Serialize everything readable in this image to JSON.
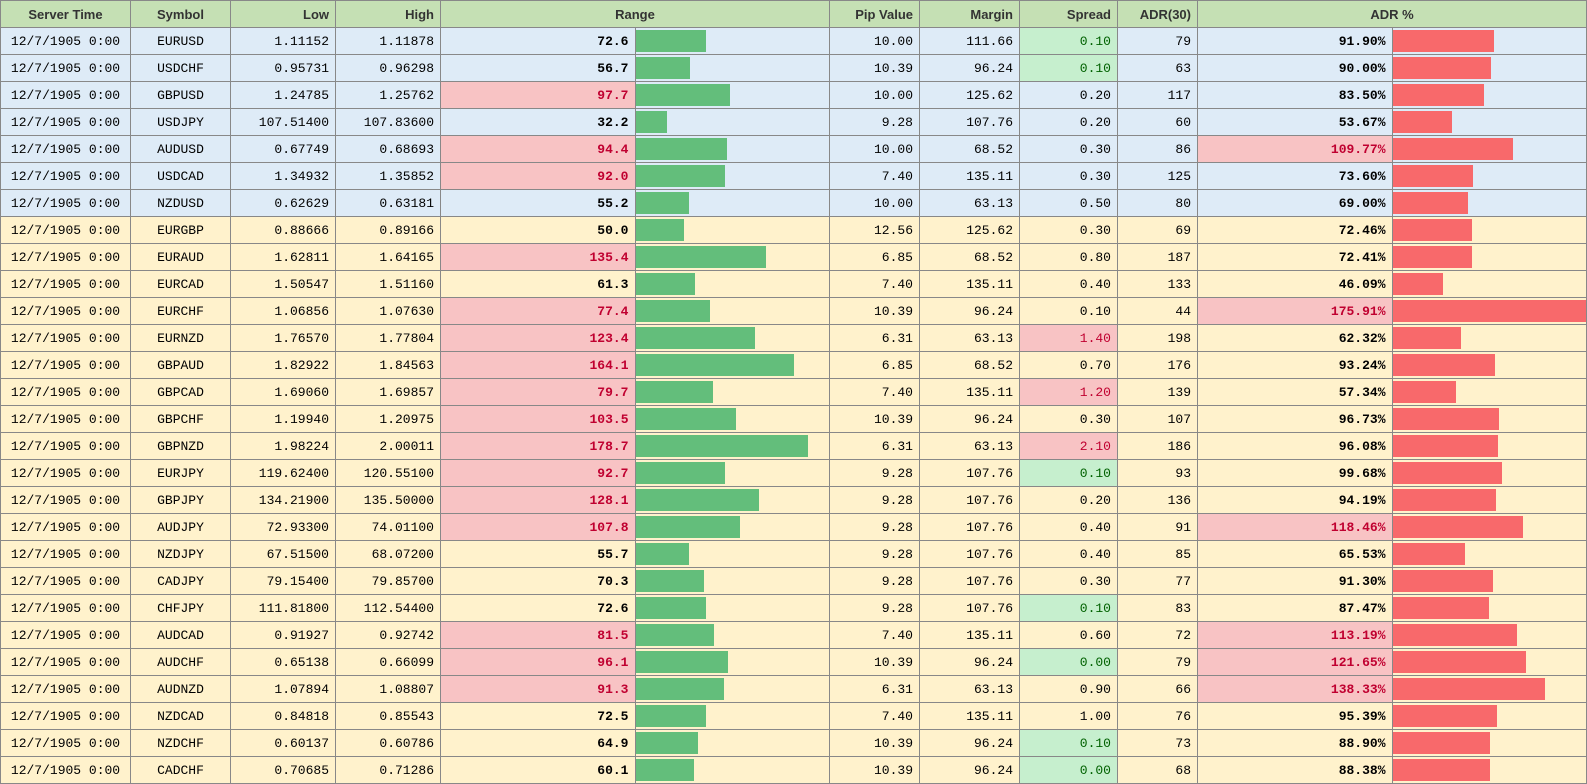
{
  "columns": {
    "time": "Server Time",
    "symbol": "Symbol",
    "low": "Low",
    "high": "High",
    "range": "Range",
    "pip": "Pip Value",
    "margin": "Margin",
    "spread": "Spread",
    "adr": "ADR(30)",
    "adrpct": "ADR %"
  },
  "range_bar_max": 200,
  "adr_bar_max": 176,
  "colors": {
    "bar_green": "#63be7b",
    "bar_red": "#f8696b",
    "row_blue": "#deebf7",
    "row_yellow": "#fff2cc",
    "header_bg": "#c5e0b4",
    "hl_pink_bg": "#f8c3c4",
    "hl_pink_fg": "#c00030",
    "hl_green_bg": "#c6efce",
    "hl_green_fg": "#006100"
  },
  "rows": [
    {
      "group": "blue",
      "time": "12/7/1905 0:00",
      "symbol": "EURUSD",
      "low": "1.11152",
      "high": "1.11878",
      "range": "72.6",
      "range_hl": "",
      "pip": "10.00",
      "margin": "111.66",
      "spread": "0.10",
      "spread_hl": "green",
      "adr": "79",
      "adrpct": "91.90%",
      "adrpct_hl": "",
      "adrpct_n": 91.9
    },
    {
      "group": "blue",
      "time": "12/7/1905 0:00",
      "symbol": "USDCHF",
      "low": "0.95731",
      "high": "0.96298",
      "range": "56.7",
      "range_hl": "",
      "pip": "10.39",
      "margin": "96.24",
      "spread": "0.10",
      "spread_hl": "green",
      "adr": "63",
      "adrpct": "90.00%",
      "adrpct_hl": "",
      "adrpct_n": 90.0
    },
    {
      "group": "blue",
      "time": "12/7/1905 0:00",
      "symbol": "GBPUSD",
      "low": "1.24785",
      "high": "1.25762",
      "range": "97.7",
      "range_hl": "pink",
      "pip": "10.00",
      "margin": "125.62",
      "spread": "0.20",
      "spread_hl": "",
      "adr": "117",
      "adrpct": "83.50%",
      "adrpct_hl": "",
      "adrpct_n": 83.5
    },
    {
      "group": "blue",
      "time": "12/7/1905 0:00",
      "symbol": "USDJPY",
      "low": "107.51400",
      "high": "107.83600",
      "range": "32.2",
      "range_hl": "",
      "pip": "9.28",
      "margin": "107.76",
      "spread": "0.20",
      "spread_hl": "",
      "adr": "60",
      "adrpct": "53.67%",
      "adrpct_hl": "",
      "adrpct_n": 53.67
    },
    {
      "group": "blue",
      "time": "12/7/1905 0:00",
      "symbol": "AUDUSD",
      "low": "0.67749",
      "high": "0.68693",
      "range": "94.4",
      "range_hl": "pink",
      "pip": "10.00",
      "margin": "68.52",
      "spread": "0.30",
      "spread_hl": "",
      "adr": "86",
      "adrpct": "109.77%",
      "adrpct_hl": "pink",
      "adrpct_n": 109.77
    },
    {
      "group": "blue",
      "time": "12/7/1905 0:00",
      "symbol": "USDCAD",
      "low": "1.34932",
      "high": "1.35852",
      "range": "92.0",
      "range_hl": "pink",
      "pip": "7.40",
      "margin": "135.11",
      "spread": "0.30",
      "spread_hl": "",
      "adr": "125",
      "adrpct": "73.60%",
      "adrpct_hl": "",
      "adrpct_n": 73.6
    },
    {
      "group": "blue",
      "time": "12/7/1905 0:00",
      "symbol": "NZDUSD",
      "low": "0.62629",
      "high": "0.63181",
      "range": "55.2",
      "range_hl": "",
      "pip": "10.00",
      "margin": "63.13",
      "spread": "0.50",
      "spread_hl": "",
      "adr": "80",
      "adrpct": "69.00%",
      "adrpct_hl": "",
      "adrpct_n": 69.0
    },
    {
      "group": "yellow",
      "time": "12/7/1905 0:00",
      "symbol": "EURGBP",
      "low": "0.88666",
      "high": "0.89166",
      "range": "50.0",
      "range_hl": "",
      "pip": "12.56",
      "margin": "125.62",
      "spread": "0.30",
      "spread_hl": "",
      "adr": "69",
      "adrpct": "72.46%",
      "adrpct_hl": "",
      "adrpct_n": 72.46
    },
    {
      "group": "yellow",
      "time": "12/7/1905 0:00",
      "symbol": "EURAUD",
      "low": "1.62811",
      "high": "1.64165",
      "range": "135.4",
      "range_hl": "pink",
      "pip": "6.85",
      "margin": "68.52",
      "spread": "0.80",
      "spread_hl": "",
      "adr": "187",
      "adrpct": "72.41%",
      "adrpct_hl": "",
      "adrpct_n": 72.41
    },
    {
      "group": "yellow",
      "time": "12/7/1905 0:00",
      "symbol": "EURCAD",
      "low": "1.50547",
      "high": "1.51160",
      "range": "61.3",
      "range_hl": "",
      "pip": "7.40",
      "margin": "135.11",
      "spread": "0.40",
      "spread_hl": "",
      "adr": "133",
      "adrpct": "46.09%",
      "adrpct_hl": "",
      "adrpct_n": 46.09
    },
    {
      "group": "yellow",
      "time": "12/7/1905 0:00",
      "symbol": "EURCHF",
      "low": "1.06856",
      "high": "1.07630",
      "range": "77.4",
      "range_hl": "pink",
      "pip": "10.39",
      "margin": "96.24",
      "spread": "0.10",
      "spread_hl": "",
      "adr": "44",
      "adrpct": "175.91%",
      "adrpct_hl": "pink",
      "adrpct_n": 175.91
    },
    {
      "group": "yellow",
      "time": "12/7/1905 0:00",
      "symbol": "EURNZD",
      "low": "1.76570",
      "high": "1.77804",
      "range": "123.4",
      "range_hl": "pink",
      "pip": "6.31",
      "margin": "63.13",
      "spread": "1.40",
      "spread_hl": "pink",
      "adr": "198",
      "adrpct": "62.32%",
      "adrpct_hl": "",
      "adrpct_n": 62.32
    },
    {
      "group": "yellow",
      "time": "12/7/1905 0:00",
      "symbol": "GBPAUD",
      "low": "1.82922",
      "high": "1.84563",
      "range": "164.1",
      "range_hl": "pink",
      "pip": "6.85",
      "margin": "68.52",
      "spread": "0.70",
      "spread_hl": "",
      "adr": "176",
      "adrpct": "93.24%",
      "adrpct_hl": "",
      "adrpct_n": 93.24
    },
    {
      "group": "yellow",
      "time": "12/7/1905 0:00",
      "symbol": "GBPCAD",
      "low": "1.69060",
      "high": "1.69857",
      "range": "79.7",
      "range_hl": "pink",
      "pip": "7.40",
      "margin": "135.11",
      "spread": "1.20",
      "spread_hl": "pink",
      "adr": "139",
      "adrpct": "57.34%",
      "adrpct_hl": "",
      "adrpct_n": 57.34
    },
    {
      "group": "yellow",
      "time": "12/7/1905 0:00",
      "symbol": "GBPCHF",
      "low": "1.19940",
      "high": "1.20975",
      "range": "103.5",
      "range_hl": "pink",
      "pip": "10.39",
      "margin": "96.24",
      "spread": "0.30",
      "spread_hl": "",
      "adr": "107",
      "adrpct": "96.73%",
      "adrpct_hl": "",
      "adrpct_n": 96.73
    },
    {
      "group": "yellow",
      "time": "12/7/1905 0:00",
      "symbol": "GBPNZD",
      "low": "1.98224",
      "high": "2.00011",
      "range": "178.7",
      "range_hl": "pink",
      "pip": "6.31",
      "margin": "63.13",
      "spread": "2.10",
      "spread_hl": "pink",
      "adr": "186",
      "adrpct": "96.08%",
      "adrpct_hl": "",
      "adrpct_n": 96.08
    },
    {
      "group": "yellow",
      "time": "12/7/1905 0:00",
      "symbol": "EURJPY",
      "low": "119.62400",
      "high": "120.55100",
      "range": "92.7",
      "range_hl": "pink",
      "pip": "9.28",
      "margin": "107.76",
      "spread": "0.10",
      "spread_hl": "green",
      "adr": "93",
      "adrpct": "99.68%",
      "adrpct_hl": "",
      "adrpct_n": 99.68
    },
    {
      "group": "yellow",
      "time": "12/7/1905 0:00",
      "symbol": "GBPJPY",
      "low": "134.21900",
      "high": "135.50000",
      "range": "128.1",
      "range_hl": "pink",
      "pip": "9.28",
      "margin": "107.76",
      "spread": "0.20",
      "spread_hl": "",
      "adr": "136",
      "adrpct": "94.19%",
      "adrpct_hl": "",
      "adrpct_n": 94.19
    },
    {
      "group": "yellow",
      "time": "12/7/1905 0:00",
      "symbol": "AUDJPY",
      "low": "72.93300",
      "high": "74.01100",
      "range": "107.8",
      "range_hl": "pink",
      "pip": "9.28",
      "margin": "107.76",
      "spread": "0.40",
      "spread_hl": "",
      "adr": "91",
      "adrpct": "118.46%",
      "adrpct_hl": "pink",
      "adrpct_n": 118.46
    },
    {
      "group": "yellow",
      "time": "12/7/1905 0:00",
      "symbol": "NZDJPY",
      "low": "67.51500",
      "high": "68.07200",
      "range": "55.7",
      "range_hl": "",
      "pip": "9.28",
      "margin": "107.76",
      "spread": "0.40",
      "spread_hl": "",
      "adr": "85",
      "adrpct": "65.53%",
      "adrpct_hl": "",
      "adrpct_n": 65.53
    },
    {
      "group": "yellow",
      "time": "12/7/1905 0:00",
      "symbol": "CADJPY",
      "low": "79.15400",
      "high": "79.85700",
      "range": "70.3",
      "range_hl": "",
      "pip": "9.28",
      "margin": "107.76",
      "spread": "0.30",
      "spread_hl": "",
      "adr": "77",
      "adrpct": "91.30%",
      "adrpct_hl": "",
      "adrpct_n": 91.3
    },
    {
      "group": "yellow",
      "time": "12/7/1905 0:00",
      "symbol": "CHFJPY",
      "low": "111.81800",
      "high": "112.54400",
      "range": "72.6",
      "range_hl": "",
      "pip": "9.28",
      "margin": "107.76",
      "spread": "0.10",
      "spread_hl": "green",
      "adr": "83",
      "adrpct": "87.47%",
      "adrpct_hl": "",
      "adrpct_n": 87.47
    },
    {
      "group": "yellow",
      "time": "12/7/1905 0:00",
      "symbol": "AUDCAD",
      "low": "0.91927",
      "high": "0.92742",
      "range": "81.5",
      "range_hl": "pink",
      "pip": "7.40",
      "margin": "135.11",
      "spread": "0.60",
      "spread_hl": "",
      "adr": "72",
      "adrpct": "113.19%",
      "adrpct_hl": "pink",
      "adrpct_n": 113.19
    },
    {
      "group": "yellow",
      "time": "12/7/1905 0:00",
      "symbol": "AUDCHF",
      "low": "0.65138",
      "high": "0.66099",
      "range": "96.1",
      "range_hl": "pink",
      "pip": "10.39",
      "margin": "96.24",
      "spread": "0.00",
      "spread_hl": "green",
      "adr": "79",
      "adrpct": "121.65%",
      "adrpct_hl": "pink",
      "adrpct_n": 121.65
    },
    {
      "group": "yellow",
      "time": "12/7/1905 0:00",
      "symbol": "AUDNZD",
      "low": "1.07894",
      "high": "1.08807",
      "range": "91.3",
      "range_hl": "pink",
      "pip": "6.31",
      "margin": "63.13",
      "spread": "0.90",
      "spread_hl": "",
      "adr": "66",
      "adrpct": "138.33%",
      "adrpct_hl": "pink",
      "adrpct_n": 138.33
    },
    {
      "group": "yellow",
      "time": "12/7/1905 0:00",
      "symbol": "NZDCAD",
      "low": "0.84818",
      "high": "0.85543",
      "range": "72.5",
      "range_hl": "",
      "pip": "7.40",
      "margin": "135.11",
      "spread": "1.00",
      "spread_hl": "",
      "adr": "76",
      "adrpct": "95.39%",
      "adrpct_hl": "",
      "adrpct_n": 95.39
    },
    {
      "group": "yellow",
      "time": "12/7/1905 0:00",
      "symbol": "NZDCHF",
      "low": "0.60137",
      "high": "0.60786",
      "range": "64.9",
      "range_hl": "",
      "pip": "10.39",
      "margin": "96.24",
      "spread": "0.10",
      "spread_hl": "green",
      "adr": "73",
      "adrpct": "88.90%",
      "adrpct_hl": "",
      "adrpct_n": 88.9
    },
    {
      "group": "yellow",
      "time": "12/7/1905 0:00",
      "symbol": "CADCHF",
      "low": "0.70685",
      "high": "0.71286",
      "range": "60.1",
      "range_hl": "",
      "pip": "10.39",
      "margin": "96.24",
      "spread": "0.00",
      "spread_hl": "green",
      "adr": "68",
      "adrpct": "88.38%",
      "adrpct_hl": "",
      "adrpct_n": 88.38
    }
  ]
}
